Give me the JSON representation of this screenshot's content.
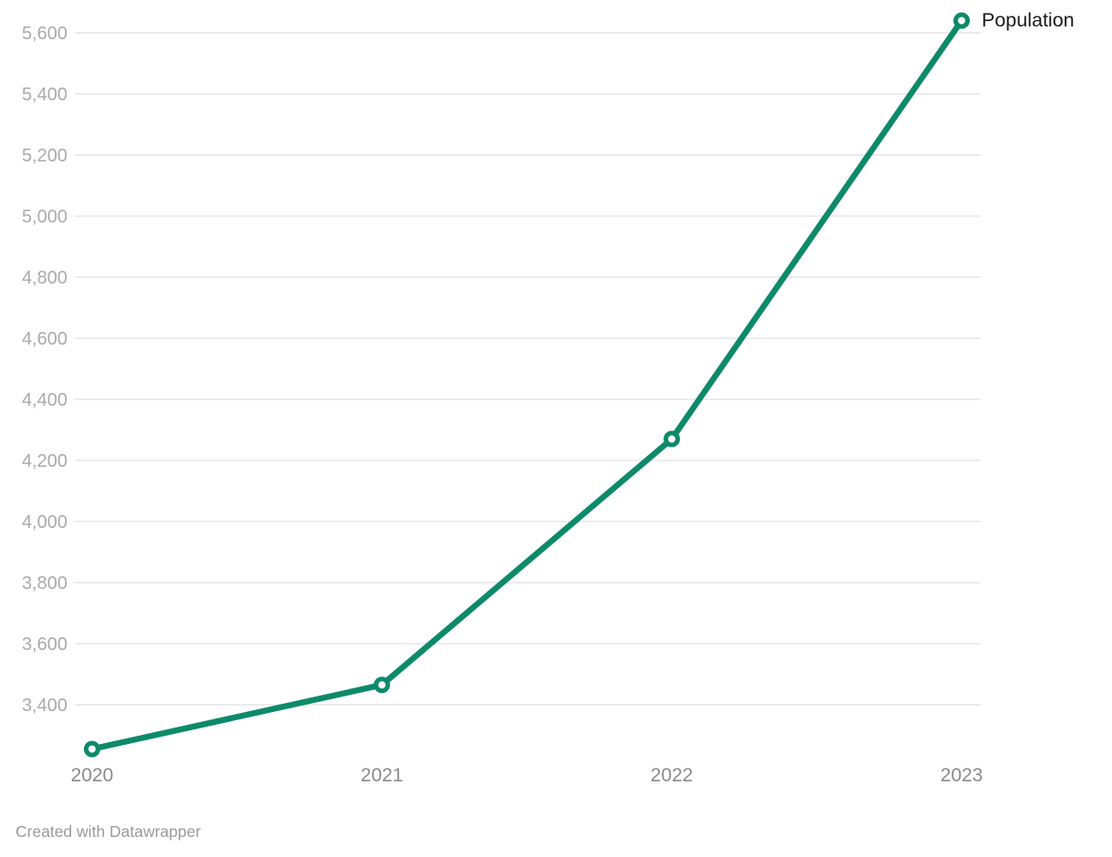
{
  "chart_data": {
    "type": "line",
    "title": "",
    "xlabel": "",
    "ylabel": "",
    "categories": [
      "2020",
      "2021",
      "2022",
      "2023"
    ],
    "series": [
      {
        "name": "Population",
        "values": [
          3255,
          3465,
          4270,
          5640
        ]
      }
    ],
    "y_ticks": [
      3400,
      3600,
      3800,
      4000,
      4200,
      4400,
      4600,
      4800,
      5000,
      5200,
      5400,
      5600
    ],
    "ylim": [
      3250,
      5650
    ],
    "grid": "horizontal-only",
    "legend_position": "end-of-line-label",
    "colors": {
      "line": "#0d8a6a",
      "marker_fill": "#ffffff",
      "gridline": "#e6e6e6",
      "y_tick_text": "#aaaaaa",
      "x_tick_text": "#8a8a8a",
      "series_label_text": "#1a1a1a",
      "credit_text": "#9a9a9a"
    }
  },
  "footer": {
    "credit_label": "Created with Datawrapper"
  }
}
